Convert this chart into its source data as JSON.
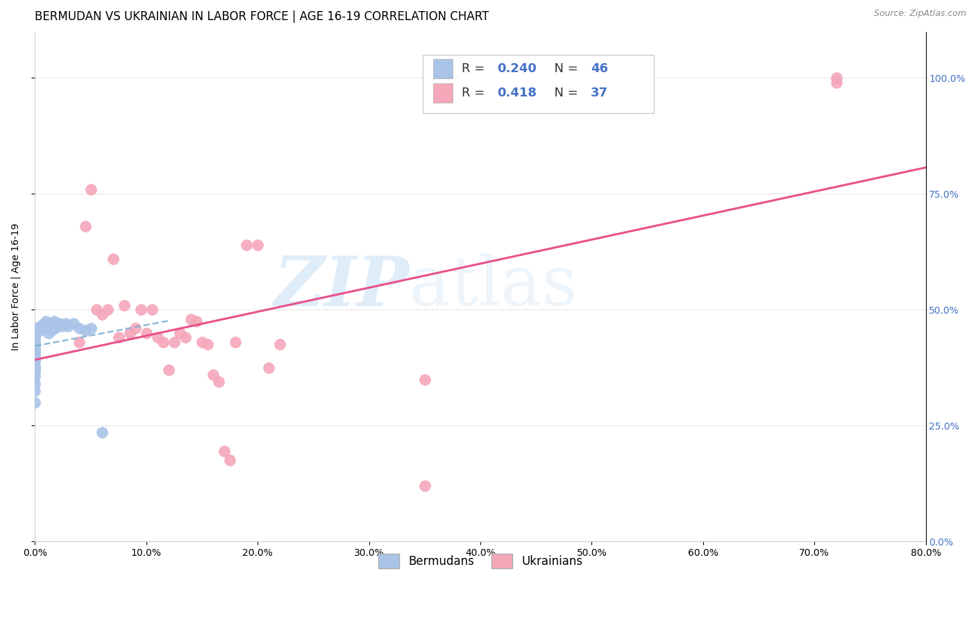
{
  "title": "BERMUDAN VS UKRAINIAN IN LABOR FORCE | AGE 16-19 CORRELATION CHART",
  "source": "Source: ZipAtlas.com",
  "ylabel": "In Labor Force | Age 16-19",
  "xlim": [
    0.0,
    0.8
  ],
  "ylim": [
    0.0,
    1.1
  ],
  "x_tick_vals": [
    0.0,
    0.1,
    0.2,
    0.3,
    0.4,
    0.5,
    0.6,
    0.7,
    0.8
  ],
  "x_tick_labels": [
    "0.0%",
    "10.0%",
    "20.0%",
    "30.0%",
    "40.0%",
    "50.0%",
    "60.0%",
    "70.0%",
    "80.0%"
  ],
  "y_tick_vals": [
    0.0,
    0.25,
    0.5,
    0.75,
    1.0
  ],
  "y_tick_labels": [
    "0.0%",
    "25.0%",
    "50.0%",
    "75.0%",
    "100.0%"
  ],
  "bermudan_x": [
    0.0,
    0.0,
    0.0,
    0.0,
    0.0,
    0.0,
    0.0,
    0.0,
    0.0,
    0.0,
    0.0,
    0.0,
    0.0,
    0.0,
    0.0,
    0.0,
    0.0,
    0.0,
    0.0,
    0.0,
    0.0,
    0.0,
    0.0,
    0.005,
    0.005,
    0.007,
    0.008,
    0.01,
    0.01,
    0.012,
    0.012,
    0.013,
    0.015,
    0.015,
    0.017,
    0.018,
    0.02,
    0.022,
    0.025,
    0.028,
    0.03,
    0.035,
    0.04,
    0.045,
    0.05,
    0.06
  ],
  "bermudan_y": [
    0.3,
    0.325,
    0.34,
    0.355,
    0.365,
    0.37,
    0.375,
    0.38,
    0.39,
    0.395,
    0.4,
    0.405,
    0.41,
    0.415,
    0.42,
    0.425,
    0.43,
    0.435,
    0.44,
    0.445,
    0.45,
    0.455,
    0.46,
    0.455,
    0.465,
    0.46,
    0.47,
    0.465,
    0.475,
    0.45,
    0.46,
    0.47,
    0.455,
    0.465,
    0.475,
    0.46,
    0.465,
    0.47,
    0.465,
    0.47,
    0.465,
    0.47,
    0.46,
    0.455,
    0.46,
    0.235
  ],
  "ukrainian_x": [
    0.04,
    0.045,
    0.05,
    0.055,
    0.06,
    0.065,
    0.07,
    0.075,
    0.08,
    0.085,
    0.09,
    0.095,
    0.1,
    0.105,
    0.11,
    0.115,
    0.12,
    0.125,
    0.13,
    0.135,
    0.14,
    0.145,
    0.15,
    0.155,
    0.16,
    0.165,
    0.17,
    0.175,
    0.18,
    0.19,
    0.2,
    0.21,
    0.22,
    0.35,
    0.35,
    0.72,
    0.72
  ],
  "ukrainian_y": [
    0.43,
    0.68,
    0.76,
    0.5,
    0.49,
    0.5,
    0.61,
    0.44,
    0.51,
    0.45,
    0.46,
    0.5,
    0.45,
    0.5,
    0.44,
    0.43,
    0.37,
    0.43,
    0.45,
    0.44,
    0.48,
    0.475,
    0.43,
    0.425,
    0.36,
    0.345,
    0.195,
    0.175,
    0.43,
    0.64,
    0.64,
    0.375,
    0.425,
    0.35,
    0.12,
    0.99,
    1.0
  ],
  "bermudan_color": "#aac4e8",
  "ukrainian_color": "#f4a7b9",
  "bermudan_line_color": "#7bafd4",
  "ukrainian_line_color": "#e8528a",
  "R_bermudan": 0.24,
  "N_bermudan": 46,
  "R_ukrainian": 0.418,
  "N_ukrainian": 37,
  "watermark_zip": "ZIP",
  "watermark_atlas": "atlas",
  "grid_color": "#e0e0e0",
  "right_tick_color": "#4472c4",
  "title_fontsize": 12,
  "axis_label_fontsize": 10,
  "tick_fontsize": 10,
  "source_fontsize": 9
}
